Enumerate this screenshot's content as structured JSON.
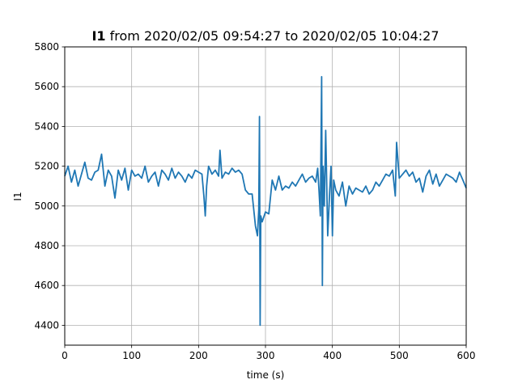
{
  "chart_data": {
    "type": "line",
    "title_bold": "I1",
    "title_rest": " from 2020/02/05 09:54:27 to 2020/02/05 10:04:27",
    "xlabel": "time (s)",
    "ylabel": "I1",
    "xlim": [
      0,
      600
    ],
    "ylim": [
      4300,
      5800
    ],
    "x_ticks": [
      0,
      100,
      200,
      300,
      400,
      500,
      600
    ],
    "y_ticks": [
      4400,
      4600,
      4800,
      5000,
      5200,
      5400,
      5600,
      5800
    ],
    "grid": true,
    "line_color": "#1f77b4",
    "series": [
      {
        "x": [
          0,
          5,
          10,
          15,
          20,
          25,
          30,
          35,
          40,
          45,
          50,
          55,
          60,
          65,
          70,
          75,
          80,
          85,
          90,
          95,
          100,
          105,
          110,
          115,
          120,
          125,
          130,
          135,
          140,
          145,
          150,
          155,
          160,
          165,
          170,
          175,
          180,
          185,
          190,
          195,
          200,
          205,
          208,
          210,
          212,
          215,
          220,
          225,
          230,
          232,
          235,
          240,
          245,
          250,
          255,
          260,
          265,
          270,
          275,
          280,
          285,
          288,
          290,
          291,
          292,
          293,
          295,
          300,
          305,
          310,
          315,
          320,
          325,
          330,
          335,
          340,
          345,
          350,
          355,
          360,
          365,
          370,
          375,
          378,
          380,
          382,
          384,
          385,
          386,
          388,
          390,
          393,
          396,
          398,
          400,
          402,
          405,
          410,
          415,
          420,
          425,
          430,
          435,
          440,
          445,
          450,
          455,
          460,
          465,
          470,
          475,
          480,
          485,
          490,
          494,
          496,
          500,
          505,
          510,
          515,
          520,
          525,
          530,
          535,
          540,
          545,
          550,
          555,
          560,
          565,
          570,
          575,
          580,
          585,
          590,
          595,
          600
        ],
        "values": [
          5150,
          5200,
          5120,
          5180,
          5100,
          5160,
          5220,
          5140,
          5130,
          5170,
          5180,
          5260,
          5100,
          5180,
          5150,
          5040,
          5180,
          5130,
          5190,
          5080,
          5180,
          5150,
          5160,
          5140,
          5200,
          5120,
          5150,
          5170,
          5100,
          5180,
          5160,
          5130,
          5190,
          5140,
          5170,
          5150,
          5120,
          5160,
          5140,
          5180,
          5170,
          5160,
          5050,
          4950,
          5100,
          5200,
          5160,
          5180,
          5150,
          5280,
          5140,
          5170,
          5160,
          5190,
          5170,
          5180,
          5160,
          5080,
          5060,
          5060,
          4900,
          4850,
          4980,
          5450,
          4400,
          4950,
          4920,
          4970,
          4960,
          5130,
          5080,
          5150,
          5080,
          5100,
          5090,
          5120,
          5100,
          5130,
          5160,
          5120,
          5140,
          5150,
          5120,
          5190,
          5080,
          4950,
          5650,
          4600,
          5200,
          5000,
          5380,
          4850,
          5080,
          5200,
          4850,
          5130,
          5080,
          5050,
          5120,
          5000,
          5100,
          5060,
          5090,
          5080,
          5070,
          5100,
          5060,
          5080,
          5120,
          5100,
          5130,
          5160,
          5150,
          5180,
          5050,
          5320,
          5140,
          5160,
          5180,
          5150,
          5170,
          5120,
          5140,
          5070,
          5150,
          5180,
          5110,
          5160,
          5100,
          5130,
          5160,
          5150,
          5140,
          5120,
          5170,
          5130,
          5090
        ]
      }
    ]
  }
}
